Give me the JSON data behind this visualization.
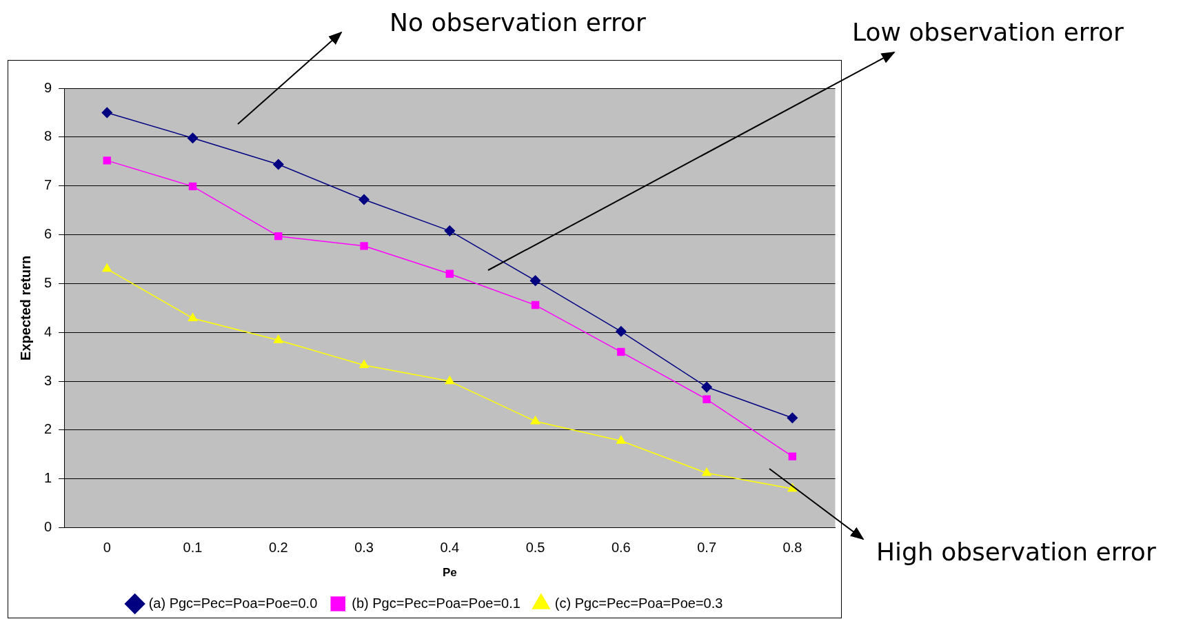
{
  "chart_data": {
    "type": "line",
    "xlabel": "Pe",
    "ylabel": "Expected return",
    "categories": [
      "0",
      "0.1",
      "0.2",
      "0.3",
      "0.4",
      "0.5",
      "0.6",
      "0.7",
      "0.8"
    ],
    "ylim": [
      0,
      9
    ],
    "yticks": [
      0,
      1,
      2,
      3,
      4,
      5,
      6,
      7,
      8,
      9
    ],
    "grid": "y",
    "legend": "bottom",
    "annotations": [
      "No observation error",
      "Low observation error",
      "High observation error"
    ],
    "series": [
      {
        "name": "(a) Pgc=Pec=Poa=Poe=0.0",
        "color": "#000080",
        "marker": "diamond",
        "values": [
          8.5,
          7.98,
          7.44,
          6.72,
          6.08,
          5.06,
          4.02,
          2.88,
          2.25
        ]
      },
      {
        "name": "(b) Pgc=Pec=Poa=Poe=0.1",
        "color": "#ff00ff",
        "marker": "square",
        "values": [
          7.52,
          6.99,
          5.97,
          5.77,
          5.2,
          4.56,
          3.6,
          2.63,
          1.46
        ]
      },
      {
        "name": "(c) Pgc=Pec=Poa=Poe=0.3",
        "color": "#ffff00",
        "marker": "triangle",
        "values": [
          5.3,
          4.29,
          3.84,
          3.33,
          3.0,
          2.18,
          1.78,
          1.12,
          0.8
        ]
      }
    ]
  }
}
